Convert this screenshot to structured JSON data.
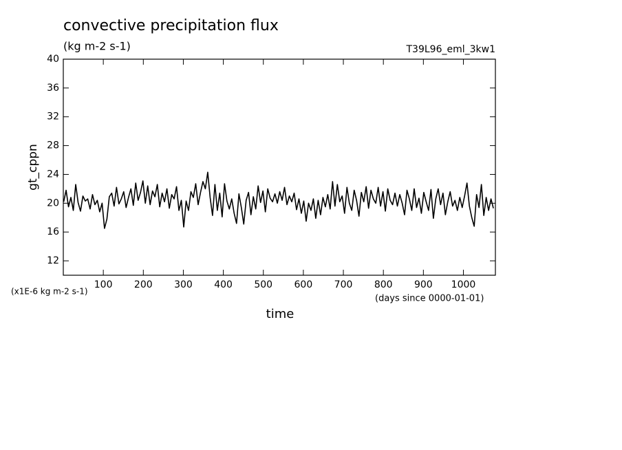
{
  "chart_data": {
    "type": "line",
    "title": "convective precipitation flux",
    "subtitle": "(kg m-2 s-1)",
    "annotation": "T39L96_eml_3kw1",
    "y_label": "gt_cppn",
    "x_label": "time",
    "y_units": "(x1E-6 kg m-2 s-1)",
    "x_units": "(days since 0000-01-01)",
    "xlim": [
      0,
      1080
    ],
    "ylim": [
      10,
      40
    ],
    "xticks": [
      100,
      200,
      300,
      400,
      500,
      600,
      700,
      800,
      900,
      1000
    ],
    "yticks": [
      12,
      16,
      20,
      24,
      28,
      32,
      36,
      40
    ],
    "color": "#000000",
    "x": [
      1,
      7,
      13,
      19,
      25,
      31,
      37,
      43,
      49,
      55,
      61,
      67,
      73,
      79,
      85,
      91,
      97,
      103,
      109,
      115,
      121,
      127,
      133,
      139,
      145,
      151,
      157,
      163,
      169,
      175,
      181,
      187,
      193,
      199,
      205,
      211,
      217,
      223,
      229,
      235,
      241,
      247,
      253,
      259,
      265,
      271,
      277,
      283,
      289,
      295,
      301,
      307,
      313,
      319,
      325,
      331,
      337,
      343,
      349,
      355,
      361,
      367,
      373,
      379,
      385,
      391,
      397,
      403,
      409,
      415,
      421,
      427,
      433,
      439,
      445,
      451,
      457,
      463,
      469,
      475,
      481,
      487,
      493,
      499,
      505,
      511,
      517,
      523,
      529,
      535,
      541,
      547,
      553,
      559,
      565,
      571,
      577,
      583,
      589,
      595,
      601,
      607,
      613,
      619,
      625,
      631,
      637,
      643,
      649,
      655,
      661,
      667,
      673,
      679,
      685,
      691,
      697,
      703,
      709,
      715,
      721,
      727,
      733,
      739,
      745,
      751,
      757,
      763,
      769,
      775,
      781,
      787,
      793,
      799,
      805,
      811,
      817,
      823,
      829,
      835,
      841,
      847,
      853,
      859,
      865,
      871,
      877,
      883,
      889,
      895,
      901,
      907,
      913,
      919,
      925,
      931,
      937,
      943,
      949,
      955,
      961,
      967,
      973,
      979,
      985,
      991,
      997,
      1003,
      1009,
      1015,
      1021,
      1027,
      1033,
      1039,
      1045,
      1051,
      1057,
      1063,
      1069,
      1075
    ],
    "values": [
      20.2,
      21.8,
      19.5,
      20.8,
      19.0,
      22.6,
      20.1,
      18.9,
      21.0,
      20.3,
      20.6,
      19.2,
      21.2,
      19.8,
      20.4,
      18.8,
      20.0,
      16.5,
      17.8,
      20.9,
      21.4,
      19.6,
      22.2,
      19.9,
      20.6,
      21.6,
      19.4,
      20.8,
      22.0,
      19.7,
      22.8,
      20.4,
      21.5,
      23.1,
      20.0,
      22.4,
      19.8,
      21.7,
      20.9,
      22.6,
      19.5,
      21.4,
      20.2,
      22.0,
      19.3,
      21.2,
      20.6,
      22.3,
      19.0,
      20.4,
      16.7,
      20.3,
      19.0,
      21.6,
      20.8,
      22.7,
      19.8,
      21.5,
      23.0,
      22.0,
      24.3,
      20.8,
      18.3,
      22.6,
      19.0,
      21.4,
      18.1,
      22.7,
      20.3,
      19.2,
      20.6,
      18.6,
      17.2,
      21.3,
      19.4,
      17.1,
      20.4,
      21.5,
      18.4,
      20.9,
      19.2,
      22.4,
      20.1,
      21.7,
      18.8,
      22.0,
      20.7,
      20.2,
      21.3,
      20.0,
      21.6,
      20.4,
      22.2,
      19.8,
      21.0,
      20.2,
      21.4,
      19.1,
      20.6,
      18.6,
      20.3,
      17.5,
      20.0,
      19.0,
      20.6,
      17.9,
      20.4,
      18.4,
      20.8,
      19.5,
      21.2,
      19.2,
      23.0,
      19.6,
      22.6,
      20.2,
      21.0,
      18.6,
      22.2,
      20.0,
      19.0,
      21.8,
      20.4,
      18.2,
      21.5,
      20.2,
      22.3,
      19.3,
      21.8,
      20.6,
      20.0,
      22.2,
      19.6,
      21.6,
      18.9,
      22.0,
      20.4,
      19.8,
      21.4,
      19.6,
      21.2,
      20.0,
      18.4,
      21.8,
      20.6,
      19.0,
      22.0,
      19.4,
      20.7,
      18.6,
      21.5,
      20.2,
      19.0,
      21.9,
      17.9,
      20.6,
      22.0,
      19.8,
      21.4,
      18.4,
      20.2,
      21.6,
      19.6,
      20.4,
      19.0,
      20.8,
      19.4,
      21.0,
      22.8,
      19.6,
      18.0,
      16.8,
      21.2,
      19.4,
      22.6,
      18.3,
      20.8,
      19.0,
      20.6,
      19.3
    ]
  }
}
